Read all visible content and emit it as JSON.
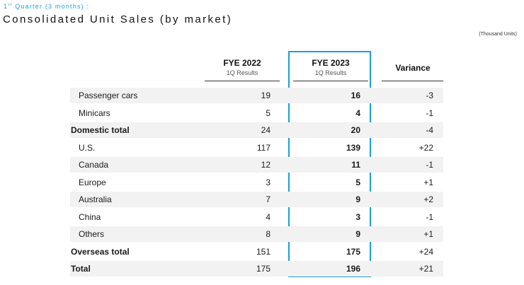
{
  "header": {
    "subtitle_ordinal": "1",
    "subtitle_suffix": "st",
    "subtitle_rest": " Quarter (3 months) :",
    "title": "Consolidated Unit Sales (by market)",
    "units": "(Thousand Units)"
  },
  "columns": {
    "fye2022": {
      "label": "FYE 2022",
      "sub": "1Q Results"
    },
    "fye2023": {
      "label": "FYE 2023",
      "sub": "1Q Results"
    },
    "variance": {
      "label": "Variance"
    }
  },
  "colors": {
    "highlight_border": "#1e9fd6",
    "subtitle": "#1fa0d8",
    "shaded_row": "#f2f2f2"
  },
  "rows": [
    {
      "label": "Passenger cars",
      "fye2022": "19",
      "fye2023": "16",
      "variance": "-3"
    },
    {
      "label": "Minicars",
      "fye2022": "5",
      "fye2023": "4",
      "variance": "-1"
    },
    {
      "label": "Domestic total",
      "fye2022": "24",
      "fye2023": "20",
      "variance": "-4"
    },
    {
      "label": "U.S.",
      "fye2022": "117",
      "fye2023": "139",
      "variance": "+22"
    },
    {
      "label": "Canada",
      "fye2022": "12",
      "fye2023": "11",
      "variance": "-1"
    },
    {
      "label": "Europe",
      "fye2022": "3",
      "fye2023": "5",
      "variance": "+1"
    },
    {
      "label": "Australia",
      "fye2022": "7",
      "fye2023": "9",
      "variance": "+2"
    },
    {
      "label": "China",
      "fye2022": "4",
      "fye2023": "3",
      "variance": "-1"
    },
    {
      "label": "Others",
      "fye2022": "8",
      "fye2023": "9",
      "variance": "+1"
    },
    {
      "label": "Overseas total",
      "fye2022": "151",
      "fye2023": "175",
      "variance": "+24"
    },
    {
      "label": "Total",
      "fye2022": "175",
      "fye2023": "196",
      "variance": "+21"
    }
  ]
}
